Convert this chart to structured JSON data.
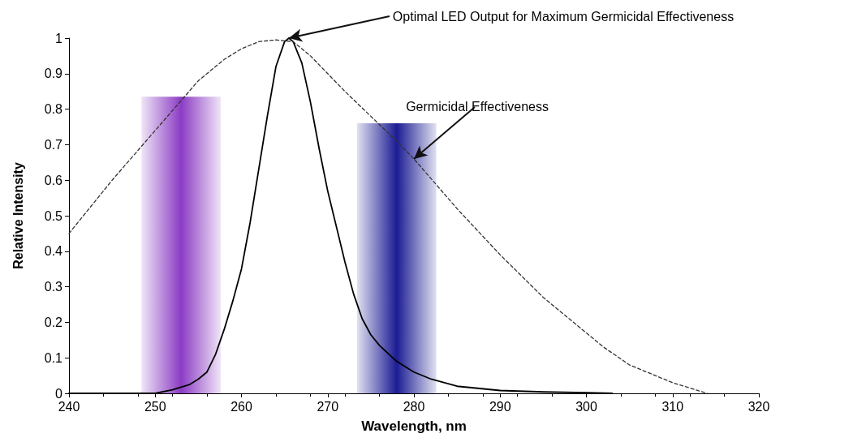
{
  "chart_data": {
    "type": "line",
    "xlabel": "Wavelength, nm",
    "ylabel": "Relative Intensity",
    "xlim": [
      240,
      320
    ],
    "xticks": [
      240,
      250,
      260,
      270,
      280,
      290,
      300,
      310,
      320
    ],
    "ylim": [
      0,
      1
    ],
    "yticks": [
      0,
      0.1,
      0.2,
      0.3,
      0.4,
      0.5,
      0.6,
      0.7,
      0.8,
      0.9,
      1
    ],
    "grid": false,
    "marker": "none",
    "annotations": [
      {
        "text": "Optimal LED Output for Maximum Germicidal Effectiveness",
        "x": 265.5,
        "y": 1
      },
      {
        "text": "Germicidal Effectiveness",
        "x": 280,
        "y": 0.66
      }
    ],
    "series": [
      {
        "type": "bar",
        "x": [
          253,
          278
        ],
        "values": [
          0.835,
          0.76
        ],
        "colors": [
          "#8b3cc4",
          "#1c1c94"
        ]
      },
      {
        "color": "#000000",
        "line_style": "solid",
        "x": [
          240,
          250,
          252,
          254,
          255,
          256,
          257,
          258,
          259,
          260,
          261,
          262,
          263,
          264,
          265,
          265.5,
          266,
          267,
          268,
          269,
          270,
          271,
          272,
          273,
          274,
          275,
          276,
          278,
          280,
          282,
          285,
          290,
          295,
          300,
          303
        ],
        "values": [
          0,
          0,
          0.01,
          0.025,
          0.04,
          0.06,
          0.11,
          0.18,
          0.26,
          0.35,
          0.48,
          0.63,
          0.78,
          0.92,
          0.99,
          1,
          0.99,
          0.93,
          0.82,
          0.69,
          0.57,
          0.47,
          0.37,
          0.28,
          0.21,
          0.165,
          0.135,
          0.09,
          0.06,
          0.04,
          0.02,
          0.008,
          0.004,
          0.002,
          0
        ]
      },
      {
        "color": "#333333",
        "line_style": "dashed",
        "x": [
          240,
          245,
          250,
          255,
          258,
          260,
          262,
          264,
          266,
          268,
          270,
          272,
          275,
          278,
          280,
          285,
          290,
          295,
          300,
          302,
          305,
          310,
          314
        ],
        "values": [
          0.45,
          0.6,
          0.74,
          0.88,
          0.94,
          0.97,
          0.99,
          0.995,
          0.99,
          0.95,
          0.9,
          0.85,
          0.78,
          0.71,
          0.66,
          0.52,
          0.39,
          0.27,
          0.17,
          0.13,
          0.08,
          0.03,
          0
        ]
      }
    ]
  }
}
